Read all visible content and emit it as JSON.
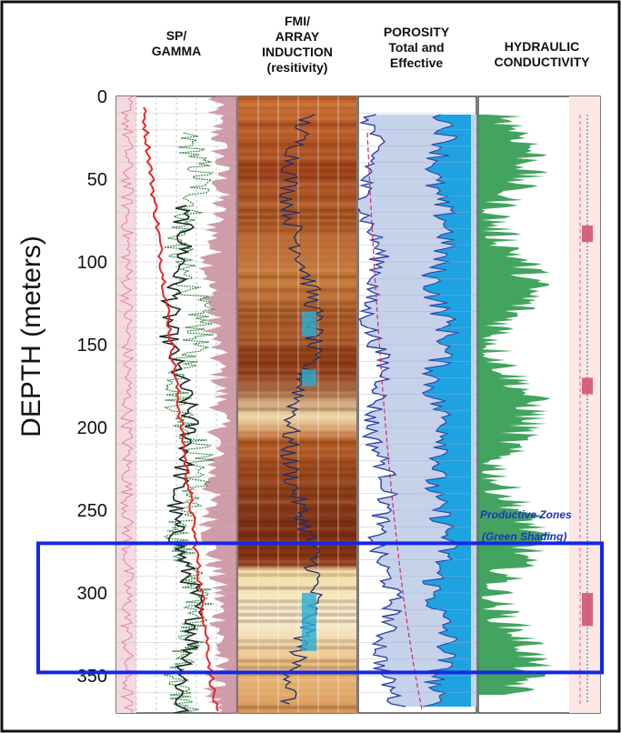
{
  "chart_data": {
    "type": "line",
    "title": "",
    "ylabel": "DEPTH (meters)",
    "ylim": [
      0,
      365
    ],
    "y_ticks": [
      0,
      50,
      100,
      150,
      200,
      250,
      300,
      350
    ],
    "tracks": [
      {
        "key": "sp",
        "label_lines": [
          "SP/",
          "GAMMA"
        ]
      },
      {
        "key": "fmi",
        "label_lines": [
          "FMI/",
          "ARRAY",
          "INDUCTION",
          "(resitivity)"
        ]
      },
      {
        "key": "por",
        "label_lines": [
          "POROSITY",
          "Total and",
          "Effective"
        ]
      },
      {
        "key": "hyd",
        "label_lines": [
          "HYDRAULIC",
          "CONDUCTIVITY"
        ]
      }
    ],
    "annotation_lines": [
      "Productive Zones",
      "(Green Shading)"
    ],
    "highlight_depth_range": [
      270,
      348
    ],
    "colors": {
      "frame": "#111111",
      "highlight": "#1428e6",
      "sp_red": "#e8262a",
      "gamma_dark": "#1a2b24",
      "gamma_green": "#3a8a48",
      "pink_fill": "#c98b9b",
      "resistivity_dark": "#7a2e12",
      "resistivity_light": "#f5e8c8",
      "porosity_total": "#c6d2ea",
      "porosity_effective": "#1ea2e0",
      "porosity_line": "#2a3fa8",
      "conductivity_green": "#2f9a4e",
      "annotation_blue": "#1c33c8"
    }
  }
}
